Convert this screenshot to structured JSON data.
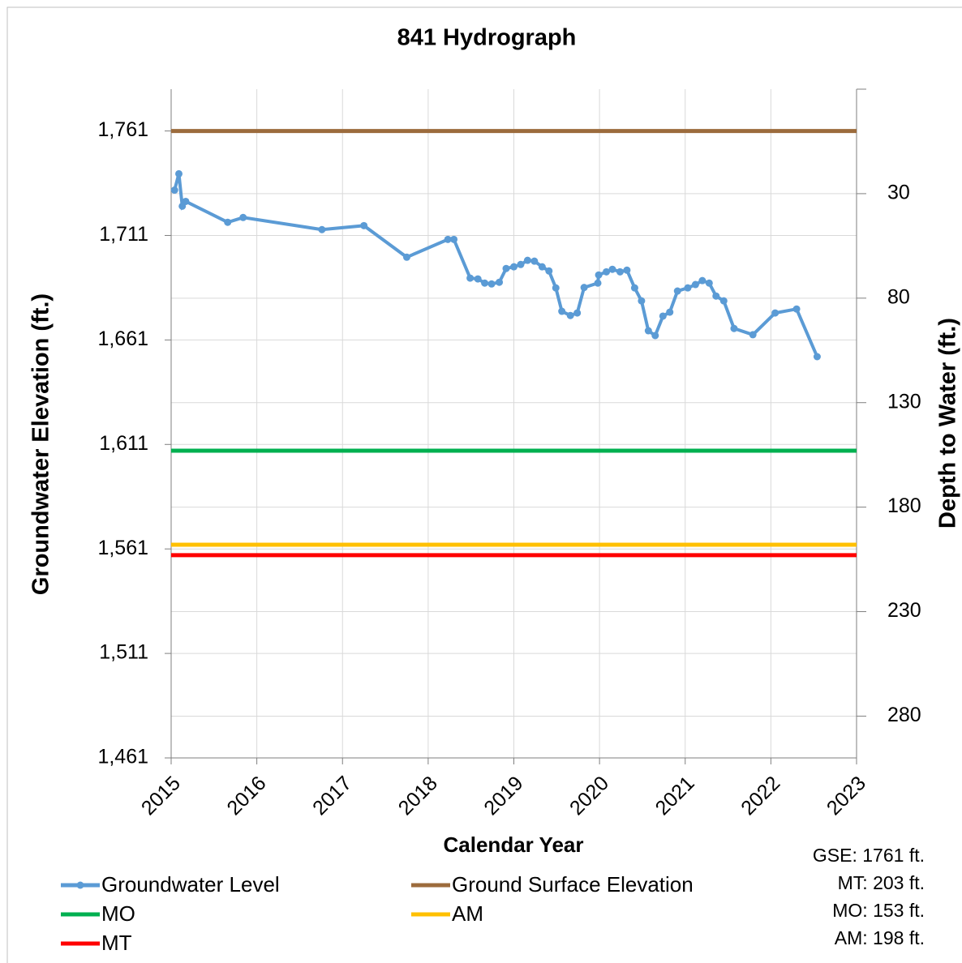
{
  "chart_data": {
    "type": "line",
    "title": "841 Hydrograph",
    "x_label": "Calendar Year",
    "y_label": "Groundwater Elevation (ft.)",
    "y2_label": "Depth to Water (ft.)",
    "xlim": [
      2015,
      2023
    ],
    "xticks": [
      2015,
      2016,
      2017,
      2018,
      2019,
      2020,
      2021,
      2022,
      2023
    ],
    "ylim": [
      1461,
      1781
    ],
    "yticks": [
      {
        "value": 1461,
        "label": "1,461"
      },
      {
        "value": 1511,
        "label": "1,511"
      },
      {
        "value": 1561,
        "label": "1,561"
      },
      {
        "value": 1611,
        "label": "1,611"
      },
      {
        "value": 1661,
        "label": "1,661"
      },
      {
        "value": 1711,
        "label": "1,711"
      },
      {
        "value": 1761,
        "label": "1,761"
      }
    ],
    "y2lim": [
      300,
      -20
    ],
    "y2ticks": [
      30,
      80,
      130,
      180,
      230,
      280
    ],
    "grid": true,
    "legend": "bottom-left",
    "series": [
      {
        "name": "Groundwater Level",
        "color": "#5b9bd5",
        "markers": true,
        "x": [
          2015.04,
          2015.09,
          2015.13,
          2015.17,
          2015.66,
          2015.84,
          2016.76,
          2017.25,
          2017.75,
          2018.23,
          2018.3,
          2018.49,
          2018.58,
          2018.66,
          2018.74,
          2018.83,
          2018.91,
          2019.0,
          2019.08,
          2019.16,
          2019.24,
          2019.33,
          2019.41,
          2019.49,
          2019.56,
          2019.66,
          2019.74,
          2019.82,
          2019.98,
          2019.99,
          2020.08,
          2020.15,
          2020.24,
          2020.32,
          2020.41,
          2020.49,
          2020.57,
          2020.65,
          2020.74,
          2020.82,
          2020.91,
          2021.03,
          2021.12,
          2021.2,
          2021.28,
          2021.36,
          2021.45,
          2021.57,
          2021.79,
          2022.05,
          2022.3,
          2022.54
        ],
        "values": [
          1732.7,
          1740.5,
          1725.0,
          1727.3,
          1717.3,
          1719.6,
          1713.8,
          1715.7,
          1700.6,
          1709.1,
          1709.1,
          1690.6,
          1690.2,
          1688.2,
          1687.8,
          1688.6,
          1695.2,
          1696.0,
          1697.1,
          1699.1,
          1698.7,
          1696.0,
          1694.0,
          1685.9,
          1674.7,
          1672.7,
          1673.9,
          1686.1,
          1688.2,
          1692.1,
          1693.6,
          1694.8,
          1693.6,
          1694.4,
          1685.9,
          1679.7,
          1665.4,
          1663.1,
          1672.4,
          1674.3,
          1684.4,
          1685.9,
          1687.5,
          1689.4,
          1688.2,
          1682.0,
          1679.7,
          1666.5,
          1663.5,
          1673.9,
          1675.8,
          1653.0
        ]
      },
      {
        "name": "Ground Surface Elevation",
        "color": "#9c6b3c",
        "x": [
          2015,
          2023
        ],
        "values": [
          1761,
          1761
        ]
      },
      {
        "name": "MO",
        "color": "#00b050",
        "x": [
          2015,
          2023
        ],
        "values": [
          1608,
          1608
        ]
      },
      {
        "name": "AM",
        "color": "#ffc000",
        "x": [
          2015,
          2023
        ],
        "values": [
          1563,
          1563
        ]
      },
      {
        "name": "MT",
        "color": "#ff0000",
        "x": [
          2015,
          2023
        ],
        "values": [
          1558,
          1558
        ]
      }
    ],
    "annotations": [
      "GSE: 1761 ft.",
      "MT: 203 ft.",
      "MO: 153 ft.",
      "AM: 198 ft."
    ]
  }
}
